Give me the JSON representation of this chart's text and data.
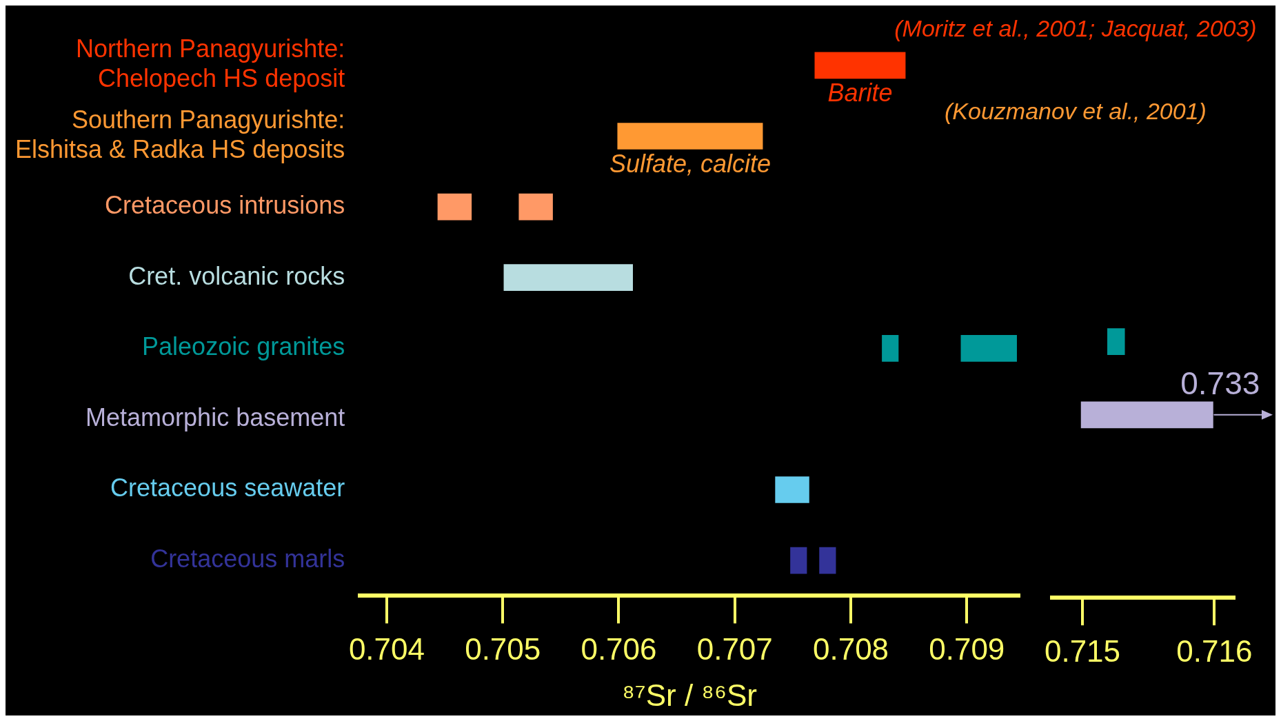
{
  "chart_data": [
    {
      "type": "bar",
      "orientation": "horizontal",
      "xlabel": "⁸⁷Sr / ⁸⁶Sr",
      "categories": [
        "Northern Panagyurishte: Chelopech HS deposit",
        "Southern Panagyurishte: Elshitsa & Radka HS deposits",
        "Cretaceous intrusions",
        "Cret. volcanic rocks",
        "Paleozoic granites",
        "Metamorphic basement",
        "Cretaceous seawater",
        "Cretaceous marls"
      ],
      "xlim": [
        0.70377,
        0.70945
      ],
      "xticks": [
        0.704,
        0.705,
        0.706,
        0.707,
        0.708,
        0.709
      ],
      "series": [
        {
          "colors": [
            "#ff3300",
            "#ff9933",
            "#ff9966",
            "#b8dde0",
            "#009999",
            null,
            "#66ccee",
            "#333399"
          ],
          "base": [
            0.70769,
            0.70599,
            0.70444,
            0.70501,
            0.70827,
            null,
            0.70735,
            0.70748
          ],
          "values": [
            0.00078,
            0.00125,
            0.00029,
            0.00111,
            0.00014,
            null,
            0.00029,
            0.00014
          ]
        },
        {
          "colors": [
            null,
            null,
            "#ff9966",
            null,
            "#009999",
            null,
            null,
            "#333399"
          ],
          "base": [
            null,
            null,
            0.70514,
            null,
            0.70895,
            null,
            null,
            0.70773
          ],
          "values": [
            null,
            null,
            0.00029,
            null,
            0.00048,
            null,
            null,
            0.00014
          ]
        }
      ],
      "annotations": [
        "Barite",
        "Sulfate, calcite"
      ]
    },
    {
      "type": "bar",
      "orientation": "horizontal",
      "tick_labels": "x",
      "categories": [
        "Northern Panagyurishte: Chelopech HS deposit",
        "Southern Panagyurishte: Elshitsa & Radka HS deposits",
        "Cretaceous intrusions",
        "Cret. volcanic rocks",
        "Paleozoic granites",
        "Metamorphic basement",
        "Cretaceous seawater",
        "Cretaceous marls"
      ],
      "xlim": [
        0.71477,
        0.71615
      ],
      "xticks": [
        0.715,
        0.716
      ],
      "series": [
        {
          "colors": [
            null,
            null,
            null,
            null,
            "#009999",
            "#b8b0d8",
            null,
            null
          ],
          "base": [
            null,
            null,
            null,
            null,
            0.71519,
            0.71499,
            null,
            null
          ],
          "values": [
            null,
            null,
            null,
            null,
            0.00013,
            0.001,
            null,
            null
          ]
        }
      ],
      "annotations": [
        "(Moritz et al., 2001; Jacquat, 2003)",
        "(Kouzmanov et al., 2001)",
        {
          "text": "0.733",
          "x": 0.716,
          "y": "Metamorphic basement"
        }
      ]
    }
  ]
}
